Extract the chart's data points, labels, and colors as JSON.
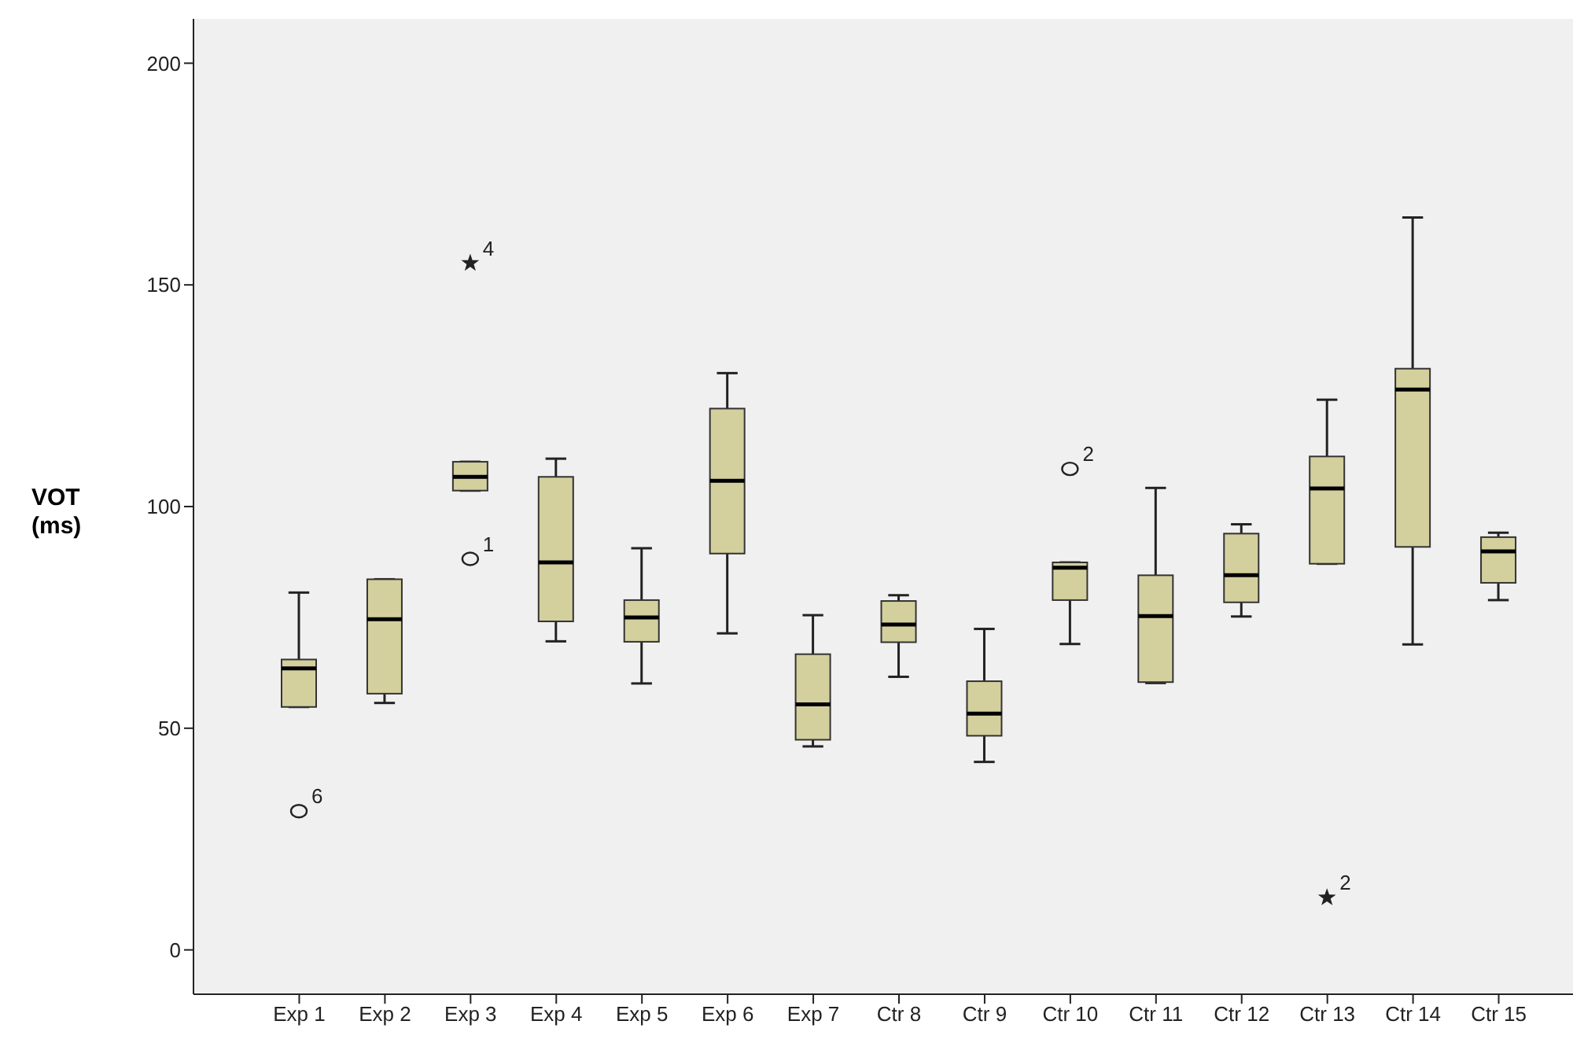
{
  "chart_data": {
    "type": "box",
    "ylabel": "VOT (ms)",
    "categories": [
      "Exp 1",
      "Exp 2",
      "Exp 3",
      "Exp 4",
      "Exp 5",
      "Exp 6",
      "Exp 7",
      "Ctr 8",
      "Ctr 9",
      "Ctr 10",
      "Ctr 11",
      "Ctr 12",
      "Ctr 13",
      "Ctr 14",
      "Ctr 15"
    ],
    "color": "#d4d09e",
    "ylim": [
      -10,
      210
    ],
    "yticks": [
      0,
      50,
      100,
      150,
      200
    ],
    "grid": false,
    "boxes": [
      {
        "low": 54.8,
        "q1": 54.8,
        "median": 63.5,
        "q3": 65.5,
        "high": 80.6,
        "outliers": [
          31.3
        ]
      },
      {
        "low": 55.7,
        "q1": 57.8,
        "median": 74.6,
        "q3": 83.6,
        "high": 83.6
      },
      {
        "low": 103.6,
        "q1": 103.6,
        "median": 106.7,
        "q3": 110.1,
        "high": 110.1,
        "outliers": [
          154.9,
          88.2
        ]
      },
      {
        "low": 69.6,
        "q1": 74.1,
        "median": 87.4,
        "q3": 106.7,
        "high": 110.8
      },
      {
        "low": 60.1,
        "q1": 69.5,
        "median": 75.0,
        "q3": 78.9,
        "high": 90.6
      },
      {
        "low": 71.4,
        "q1": 89.4,
        "median": 105.8,
        "q3": 122.1,
        "high": 130.1
      },
      {
        "low": 45.9,
        "q1": 47.4,
        "median": 55.4,
        "q3": 66.7,
        "high": 75.5
      },
      {
        "low": 61.6,
        "q1": 69.4,
        "median": 73.4,
        "q3": 78.7,
        "high": 80.0
      },
      {
        "low": 42.4,
        "q1": 48.3,
        "median": 53.3,
        "q3": 60.6,
        "high": 72.4
      },
      {
        "low": 69.0,
        "q1": 78.9,
        "median": 86.2,
        "q3": 87.4,
        "high": 87.4,
        "outliers": [
          108.5
        ]
      },
      {
        "low": 60.2,
        "q1": 60.4,
        "median": 75.3,
        "q3": 84.5,
        "high": 104.2
      },
      {
        "low": 75.2,
        "q1": 78.4,
        "median": 84.5,
        "q3": 93.9,
        "high": 96.0
      },
      {
        "low": 87.1,
        "q1": 87.1,
        "median": 104.1,
        "q3": 111.3,
        "high": 124.1,
        "outliers": [
          11.8
        ]
      },
      {
        "low": 68.9,
        "q1": 90.9,
        "median": 126.4,
        "q3": 131.1,
        "high": 165.2
      },
      {
        "low": 78.9,
        "q1": 82.8,
        "median": 89.9,
        "q3": 93.1,
        "high": 94.1
      }
    ],
    "annotations": [
      "6",
      "4",
      "1",
      "2",
      "2"
    ]
  }
}
